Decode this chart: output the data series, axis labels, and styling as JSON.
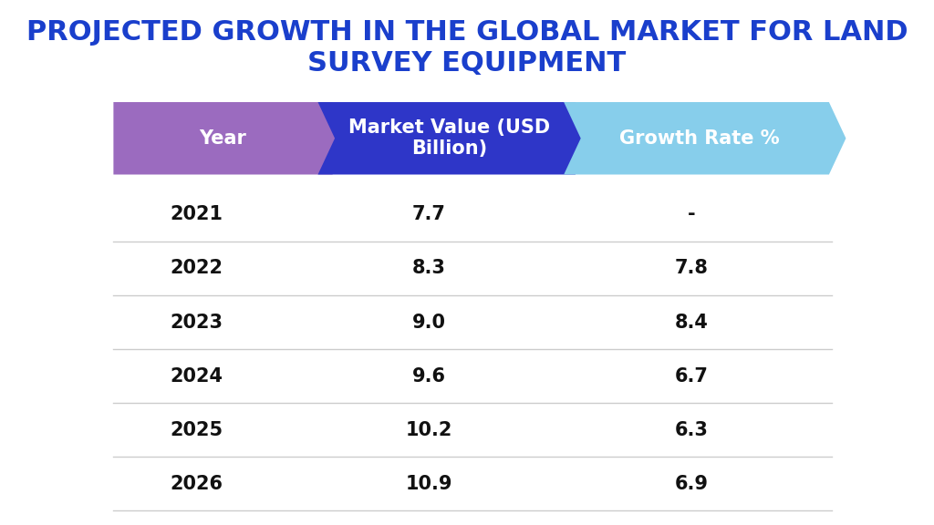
{
  "title": "PROJECTED GROWTH IN THE GLOBAL MARKET FOR LAND\nSURVEY EQUIPMENT",
  "title_color": "#1a3fcc",
  "title_fontsize": 22,
  "background_color": "#ffffff",
  "headers": [
    "Year",
    "Market Value (USD\nBillion)",
    "Growth Rate %"
  ],
  "header_colors": [
    "#9b6bbf",
    "#2e36c8",
    "#87ceeb"
  ],
  "header_text_color": "#ffffff",
  "years": [
    "2021",
    "2022",
    "2023",
    "2024",
    "2025",
    "2026"
  ],
  "market_values": [
    "7.7",
    "8.3",
    "9.0",
    "9.6",
    "10.2",
    "10.9"
  ],
  "growth_rates": [
    "-",
    "7.8",
    "8.4",
    "6.7",
    "6.3",
    "6.9"
  ],
  "row_line_color": "#cccccc",
  "data_text_color": "#111111",
  "data_fontsize": 15,
  "header_fontsize": 15
}
